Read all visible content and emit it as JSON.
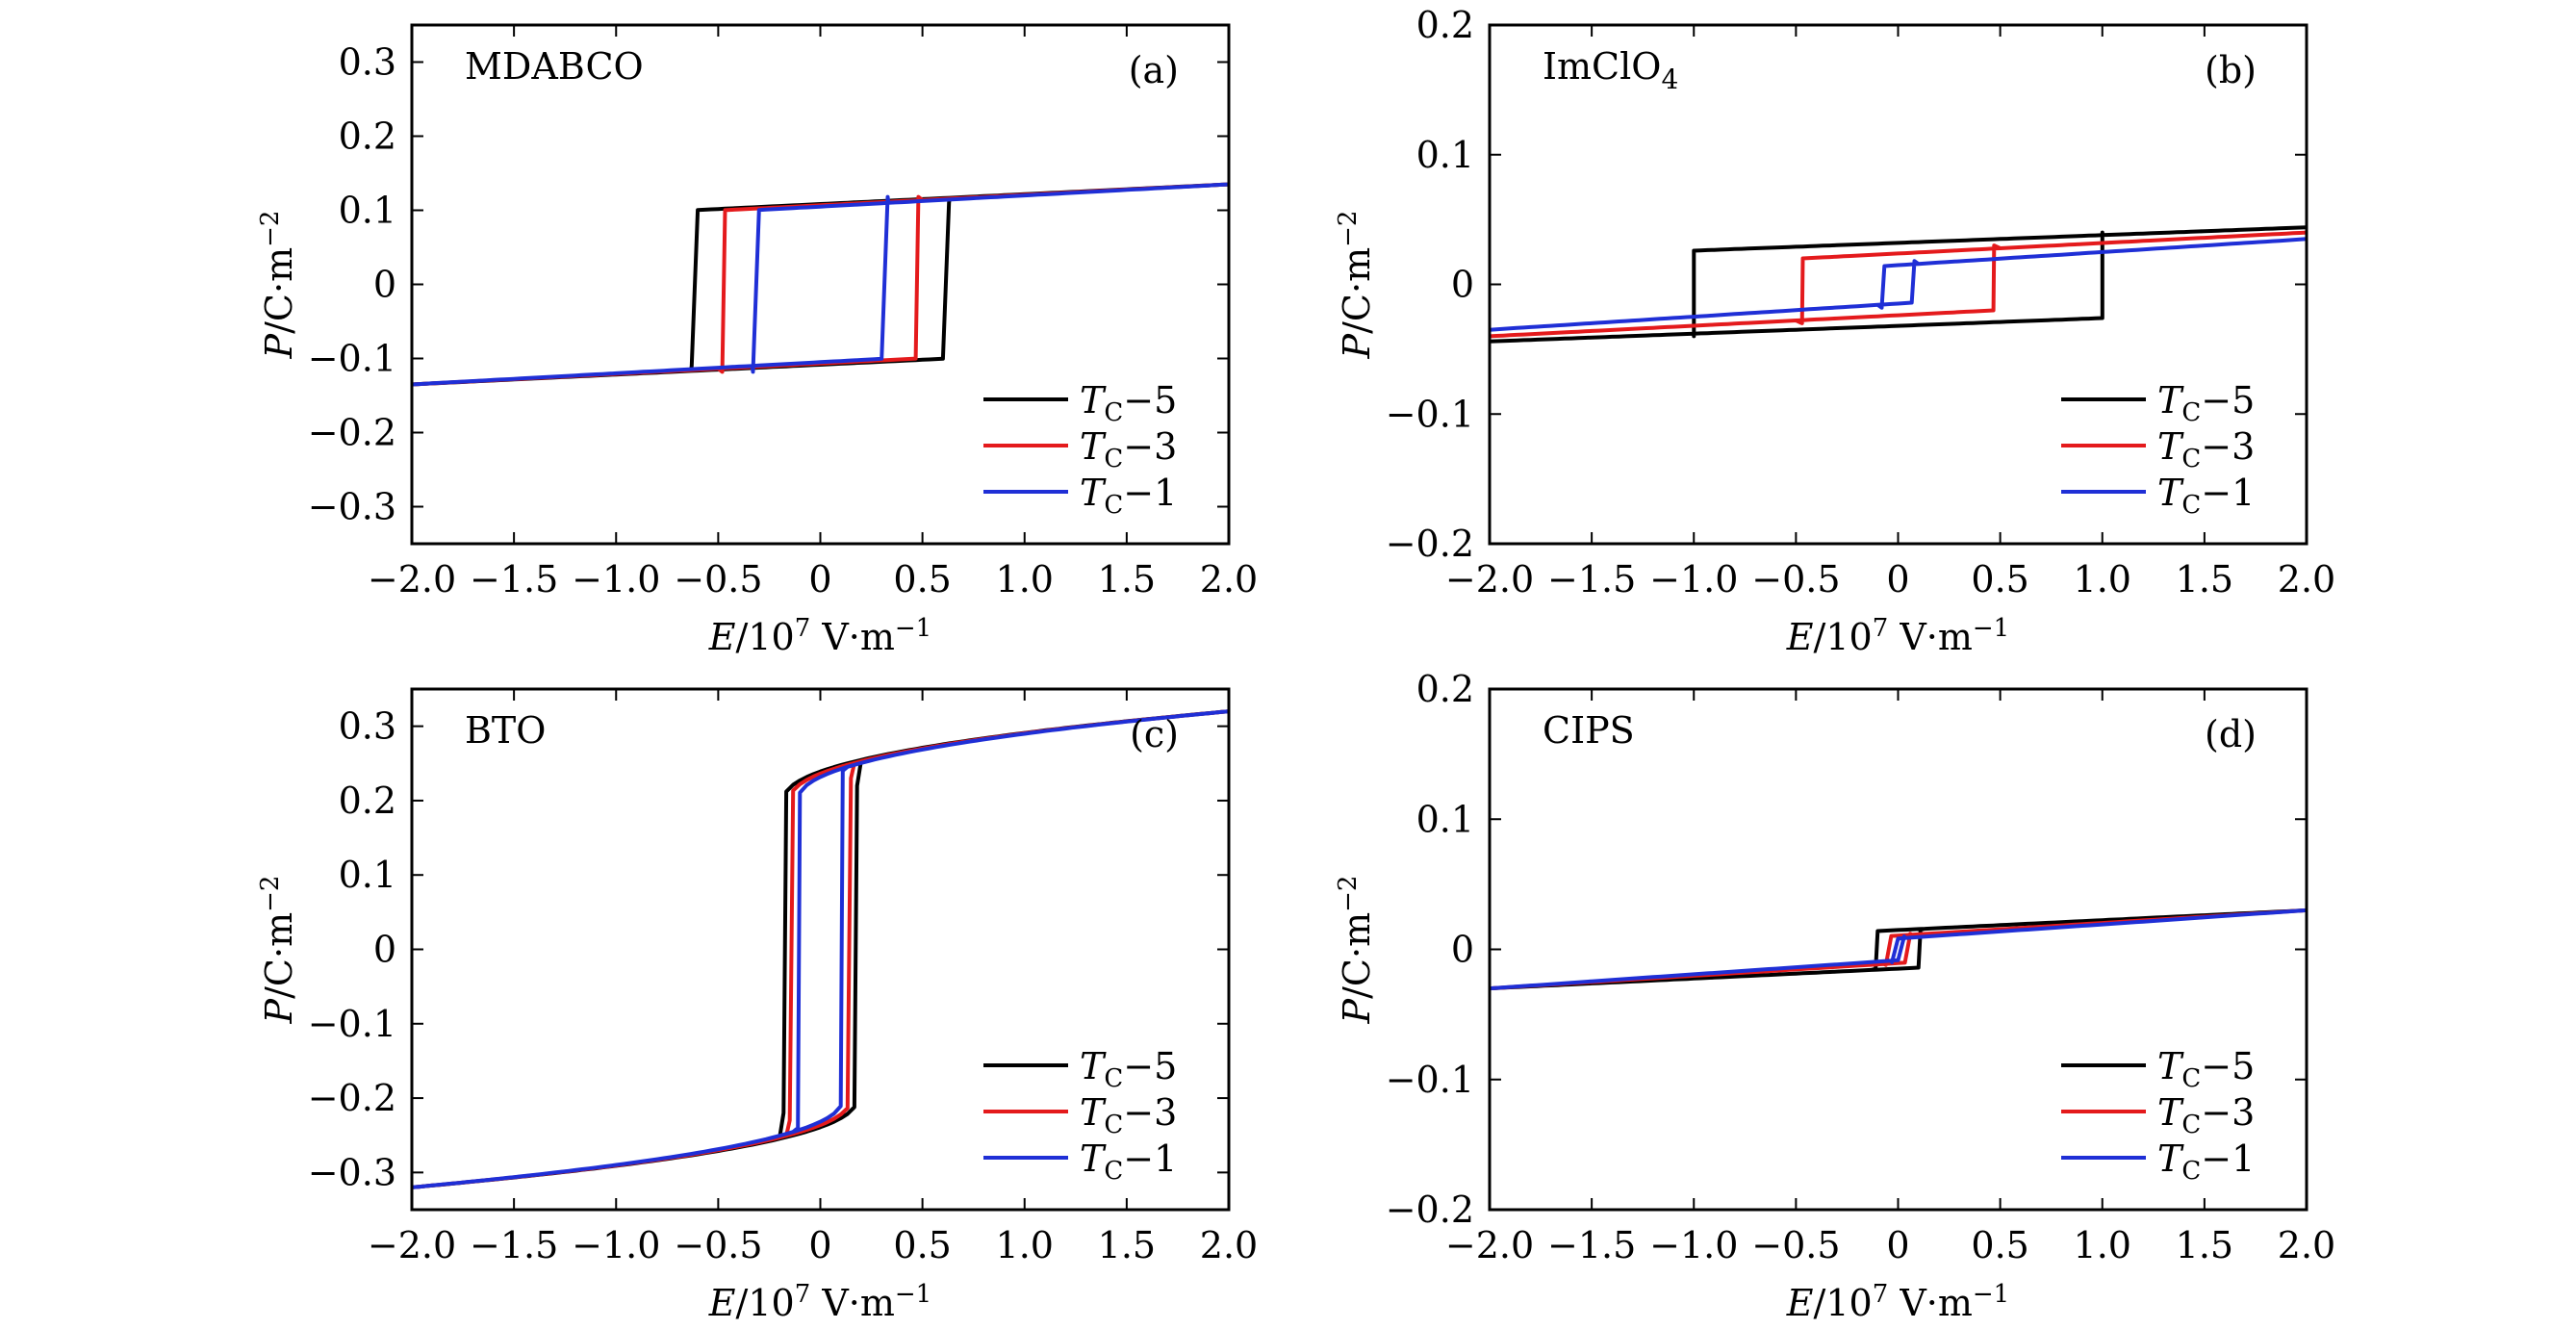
{
  "chart_data": [
    {
      "type": "line",
      "panel_label": "(a)",
      "material": "MDABCO",
      "xlabel": {
        "main": "E/10",
        "exp": "7",
        "unit": " V·m",
        "unit_exp": "−1"
      },
      "ylabel": {
        "main": "P/C·m",
        "exp": "−2"
      },
      "xlim": [
        -2.0,
        2.0
      ],
      "ylim": [
        -0.35,
        0.35
      ],
      "xticks": [
        -2.0,
        -1.5,
        -1.0,
        -0.5,
        0,
        0.5,
        1.0,
        1.5,
        2.0
      ],
      "xtick_labels": [
        "−2.0",
        "−1.5",
        "−1.0",
        "−0.5",
        "0",
        "0.5",
        "1.0",
        "1.5",
        "2.0"
      ],
      "yticks": [
        -0.3,
        -0.2,
        -0.1,
        0,
        0.1,
        0.2,
        0.3
      ],
      "ytick_labels": [
        "−0.3",
        "−0.2",
        "−0.1",
        "0",
        "0.1",
        "0.2",
        "0.3"
      ],
      "legend_position": "lower-right",
      "series": [
        {
          "name": "TC−5",
          "T": "T",
          "sub": "C",
          "suffix": "−5",
          "color": "#000000",
          "Ec": 0.63,
          "Ps": 0.135,
          "Pr": 0.1,
          "Psw": 0.11
        },
        {
          "name": "TC−3",
          "T": "T",
          "sub": "C",
          "suffix": "−3",
          "color": "#e41a1c",
          "Ec": 0.48,
          "Ps": 0.135,
          "Pr": 0.1,
          "Psw": 0.118
        },
        {
          "name": "TC−1",
          "T": "T",
          "sub": "C",
          "suffix": "−1",
          "color": "#1f2fd6",
          "Ec": 0.33,
          "Ps": 0.135,
          "Pr": 0.1,
          "Psw": 0.118
        }
      ]
    },
    {
      "type": "line",
      "panel_label": "(b)",
      "material": "ImClO",
      "material_sub": "4",
      "xlabel": {
        "main": "E/10",
        "exp": "7",
        "unit": " V·m",
        "unit_exp": "−1"
      },
      "ylabel": {
        "main": "P/C·m",
        "exp": "−2"
      },
      "xlim": [
        -2.0,
        2.0
      ],
      "ylim": [
        -0.2,
        0.2
      ],
      "xticks": [
        -2.0,
        -1.5,
        -1.0,
        -0.5,
        0,
        0.5,
        1.0,
        1.5,
        2.0
      ],
      "xtick_labels": [
        "−2.0",
        "−1.5",
        "−1.0",
        "−0.5",
        "0",
        "0.5",
        "1.0",
        "1.5",
        "2.0"
      ],
      "yticks": [
        -0.2,
        -0.1,
        0,
        0.1,
        0.2
      ],
      "ytick_labels": [
        "−0.2",
        "−0.1",
        "0",
        "0.1",
        "0.2"
      ],
      "legend_position": "lower-right",
      "series": [
        {
          "name": "TC−5",
          "T": "T",
          "sub": "C",
          "suffix": "−5",
          "color": "#000000",
          "Ec": 1.0,
          "Ps": 0.044,
          "Pr": 0.026,
          "Psw": 0.04
        },
        {
          "name": "TC−3",
          "T": "T",
          "sub": "C",
          "suffix": "−3",
          "color": "#e41a1c",
          "Ec": 0.47,
          "Ps": 0.04,
          "Pr": 0.02,
          "Psw": 0.03
        },
        {
          "name": "TC−1",
          "T": "T",
          "sub": "C",
          "suffix": "−1",
          "color": "#1f2fd6",
          "Ec": 0.08,
          "Ps": 0.035,
          "Pr": 0.014,
          "Psw": 0.018
        }
      ]
    },
    {
      "type": "line",
      "panel_label": "(c)",
      "material": "BTO",
      "xlabel": {
        "main": "E/10",
        "exp": "7",
        "unit": " V·m",
        "unit_exp": "−1"
      },
      "ylabel": {
        "main": "P/C·m",
        "exp": "−2"
      },
      "xlim": [
        -2.0,
        2.0
      ],
      "ylim": [
        -0.35,
        0.35
      ],
      "xticks": [
        -2.0,
        -1.5,
        -1.0,
        -0.5,
        0,
        0.5,
        1.0,
        1.5,
        2.0
      ],
      "xtick_labels": [
        "−2.0",
        "−1.5",
        "−1.0",
        "−0.5",
        "0",
        "0.5",
        "1.0",
        "1.5",
        "2.0"
      ],
      "yticks": [
        -0.3,
        -0.2,
        -0.1,
        0,
        0.1,
        0.2,
        0.3
      ],
      "ytick_labels": [
        "−0.3",
        "−0.2",
        "−0.1",
        "0",
        "0.1",
        "0.2",
        "0.3"
      ],
      "legend_position": "lower-right",
      "series": [
        {
          "name": "TC−5",
          "T": "T",
          "sub": "C",
          "suffix": "−5",
          "color": "#000000",
          "Ec": 0.18,
          "Ps": 0.32,
          "Pr": 0.2,
          "Psw": 0.22
        },
        {
          "name": "TC−3",
          "T": "T",
          "sub": "C",
          "suffix": "−3",
          "color": "#e41a1c",
          "Ec": 0.15,
          "Ps": 0.32,
          "Pr": 0.2,
          "Psw": 0.23
        },
        {
          "name": "TC−1",
          "T": "T",
          "sub": "C",
          "suffix": "−1",
          "color": "#1f2fd6",
          "Ec": 0.11,
          "Ps": 0.32,
          "Pr": 0.2,
          "Psw": 0.24
        }
      ]
    },
    {
      "type": "line",
      "panel_label": "(d)",
      "material": "CIPS",
      "xlabel": {
        "main": "E/10",
        "exp": "7",
        "unit": " V·m",
        "unit_exp": "−1"
      },
      "ylabel": {
        "main": "P/C·m",
        "exp": "−2"
      },
      "xlim": [
        -2.0,
        2.0
      ],
      "ylim": [
        -0.2,
        0.2
      ],
      "xticks": [
        -2.0,
        -1.5,
        -1.0,
        -0.5,
        0,
        0.5,
        1.0,
        1.5,
        2.0
      ],
      "xtick_labels": [
        "−2.0",
        "−1.5",
        "−1.0",
        "−0.5",
        "0",
        "0.5",
        "1.0",
        "1.5",
        "2.0"
      ],
      "yticks": [
        -0.2,
        -0.1,
        0,
        0.1,
        0.2
      ],
      "ytick_labels": [
        "−0.2",
        "−0.1",
        "0",
        "0.1",
        "0.2"
      ],
      "legend_position": "lower-right",
      "series": [
        {
          "name": "TC−5",
          "T": "T",
          "sub": "C",
          "suffix": "−5",
          "color": "#000000",
          "Ec": 0.11,
          "Ps": 0.03,
          "Pr": 0.014,
          "Psw": 0.015
        },
        {
          "name": "TC−3",
          "T": "T",
          "sub": "C",
          "suffix": "−3",
          "color": "#e41a1c",
          "Ec": 0.06,
          "Ps": 0.03,
          "Pr": 0.01,
          "Psw": 0.012
        },
        {
          "name": "TC−1",
          "T": "T",
          "sub": "C",
          "suffix": "−1",
          "color": "#1f2fd6",
          "Ec": 0.03,
          "Ps": 0.03,
          "Pr": 0.008,
          "Psw": 0.01
        }
      ]
    }
  ]
}
